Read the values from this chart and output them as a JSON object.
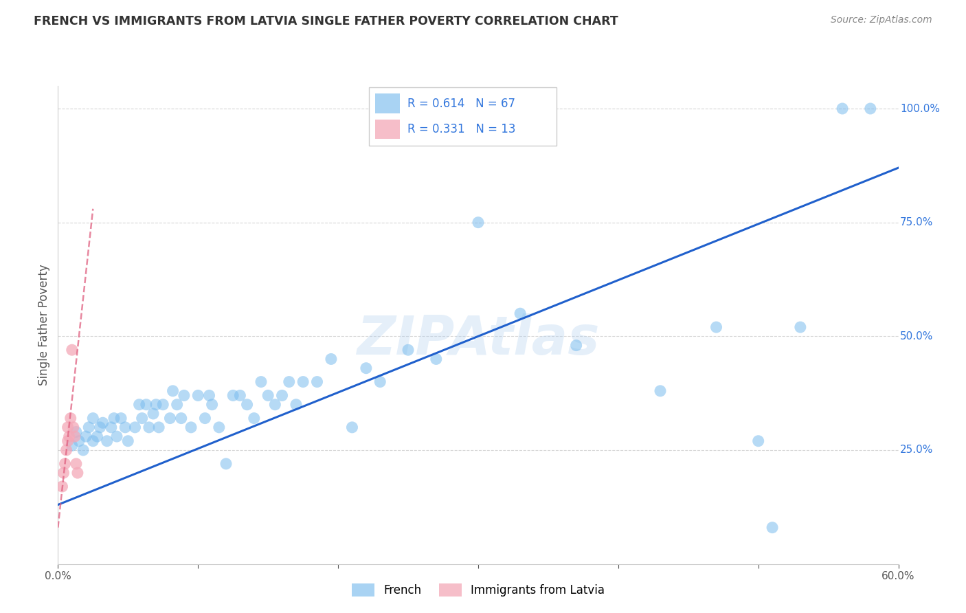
{
  "title": "FRENCH VS IMMIGRANTS FROM LATVIA SINGLE FATHER POVERTY CORRELATION CHART",
  "source": "Source: ZipAtlas.com",
  "ylabel": "Single Father Poverty",
  "watermark": "ZIPAtlas",
  "legend_blue_R": "0.614",
  "legend_blue_N": "67",
  "legend_pink_R": "0.331",
  "legend_pink_N": "13",
  "legend_label_blue": "French",
  "legend_label_pink": "Immigrants from Latvia",
  "blue_color": "#7bbcee",
  "blue_line_color": "#2060cc",
  "pink_color": "#f4a8b8",
  "pink_line_color": "#e06080",
  "grid_color": "#cccccc",
  "title_color": "#333333",
  "stat_color": "#3377dd",
  "x_min": 0.0,
  "x_max": 0.6,
  "y_min": 0.0,
  "y_max": 1.05,
  "blue_trendline_x": [
    0.0,
    0.6
  ],
  "blue_trendline_y": [
    0.13,
    0.87
  ],
  "pink_trendline_x": [
    0.0,
    0.025
  ],
  "pink_trendline_y": [
    0.08,
    0.78
  ],
  "blue_scatter_x": [
    0.01,
    0.013,
    0.015,
    0.018,
    0.02,
    0.022,
    0.025,
    0.025,
    0.028,
    0.03,
    0.032,
    0.035,
    0.038,
    0.04,
    0.042,
    0.045,
    0.048,
    0.05,
    0.055,
    0.058,
    0.06,
    0.063,
    0.065,
    0.068,
    0.07,
    0.072,
    0.075,
    0.08,
    0.082,
    0.085,
    0.088,
    0.09,
    0.095,
    0.1,
    0.105,
    0.108,
    0.11,
    0.115,
    0.12,
    0.125,
    0.13,
    0.135,
    0.14,
    0.145,
    0.15,
    0.155,
    0.16,
    0.165,
    0.17,
    0.175,
    0.185,
    0.195,
    0.21,
    0.22,
    0.23,
    0.25,
    0.27,
    0.3,
    0.33,
    0.37,
    0.43,
    0.47,
    0.5,
    0.51,
    0.53,
    0.56,
    0.58
  ],
  "blue_scatter_y": [
    0.26,
    0.29,
    0.27,
    0.25,
    0.28,
    0.3,
    0.27,
    0.32,
    0.28,
    0.3,
    0.31,
    0.27,
    0.3,
    0.32,
    0.28,
    0.32,
    0.3,
    0.27,
    0.3,
    0.35,
    0.32,
    0.35,
    0.3,
    0.33,
    0.35,
    0.3,
    0.35,
    0.32,
    0.38,
    0.35,
    0.32,
    0.37,
    0.3,
    0.37,
    0.32,
    0.37,
    0.35,
    0.3,
    0.22,
    0.37,
    0.37,
    0.35,
    0.32,
    0.4,
    0.37,
    0.35,
    0.37,
    0.4,
    0.35,
    0.4,
    0.4,
    0.45,
    0.3,
    0.43,
    0.4,
    0.47,
    0.45,
    0.75,
    0.55,
    0.48,
    0.38,
    0.52,
    0.27,
    0.08,
    0.52,
    1.0,
    1.0
  ],
  "pink_scatter_x": [
    0.003,
    0.004,
    0.005,
    0.006,
    0.007,
    0.007,
    0.008,
    0.009,
    0.01,
    0.011,
    0.012,
    0.013,
    0.014
  ],
  "pink_scatter_y": [
    0.17,
    0.2,
    0.22,
    0.25,
    0.27,
    0.3,
    0.28,
    0.32,
    0.47,
    0.3,
    0.28,
    0.22,
    0.2
  ]
}
